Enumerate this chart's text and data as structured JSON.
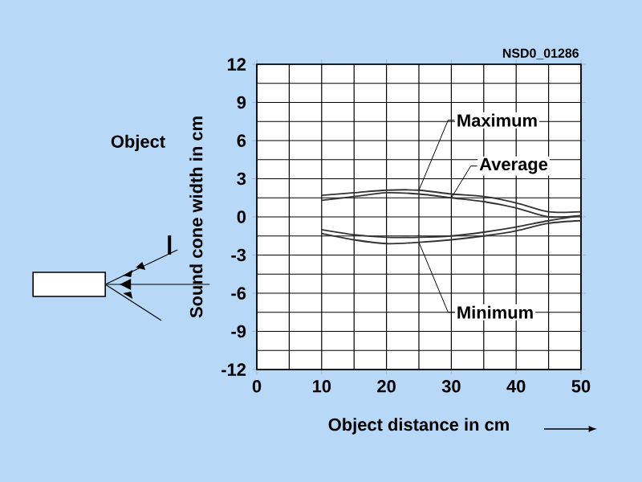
{
  "chart_data": {
    "type": "line",
    "xlabel": "Object distance in cm",
    "ylabel": "Sound cone width in cm",
    "annotations": [
      "NSD0_01286",
      "Object"
    ],
    "x": [
      10,
      15,
      20,
      25,
      30,
      35,
      40,
      45,
      50
    ],
    "series": [
      {
        "name": "Maximum",
        "color": "#333333",
        "values": [
          1.7,
          1.9,
          2.1,
          2.1,
          1.8,
          1.6,
          1.1,
          0.4,
          0.4
        ]
      },
      {
        "name": "Average",
        "color": "#333333",
        "values": [
          1.3,
          1.6,
          1.9,
          1.8,
          1.5,
          1.2,
          0.7,
          0.0,
          0.1
        ]
      },
      {
        "color": "#333333",
        "values": [
          -1.0,
          -1.4,
          -1.6,
          -1.6,
          -1.5,
          -1.2,
          -0.8,
          -0.3,
          0.1
        ]
      },
      {
        "name": "Minimum",
        "color": "#333333",
        "values": [
          -1.3,
          -1.8,
          -2.1,
          -2.0,
          -1.8,
          -1.5,
          -1.1,
          -0.5,
          -0.3
        ]
      }
    ],
    "xlim": [
      0,
      50
    ],
    "xticks": [
      0,
      10,
      20,
      30,
      40,
      50
    ],
    "ylim": [
      -12,
      12
    ],
    "yticks": [
      -12,
      -9,
      -6,
      -3,
      0,
      3,
      6,
      9,
      12
    ],
    "grid": true,
    "legend": false,
    "marker": "none"
  }
}
